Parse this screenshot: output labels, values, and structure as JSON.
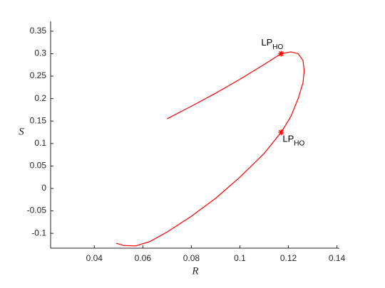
{
  "chart_data": {
    "type": "line",
    "xlabel": "R",
    "ylabel": "S",
    "x": [
      0.07,
      0.08,
      0.09,
      0.1,
      0.11,
      0.117,
      0.121,
      0.124,
      0.126,
      0.1265,
      0.126,
      0.124,
      0.121,
      0.117,
      0.11,
      0.1,
      0.09,
      0.08,
      0.07,
      0.063,
      0.057,
      0.052,
      0.049
    ],
    "values": [
      0.155,
      0.183,
      0.212,
      0.243,
      0.276,
      0.3,
      0.304,
      0.3,
      0.285,
      0.262,
      0.235,
      0.2,
      0.16,
      0.125,
      0.078,
      0.025,
      -0.022,
      -0.062,
      -0.097,
      -0.118,
      -0.128,
      -0.127,
      -0.122
    ],
    "color": "#ff0000",
    "xlim": [
      0.022,
      0.141
    ],
    "ylim": [
      -0.133,
      0.372
    ],
    "xticks": [
      0.04,
      0.06,
      0.08,
      0.1,
      0.12,
      0.14
    ],
    "yticks": [
      -0.1,
      -0.05,
      0,
      0.05,
      0.1,
      0.15,
      0.2,
      0.25,
      0.3,
      0.35
    ],
    "annotations": [
      {
        "text": "LP",
        "sub": "HO",
        "x": 0.117,
        "y": 0.3
      },
      {
        "text": "LP",
        "sub": "HO",
        "x": 0.117,
        "y": 0.125
      }
    ]
  }
}
